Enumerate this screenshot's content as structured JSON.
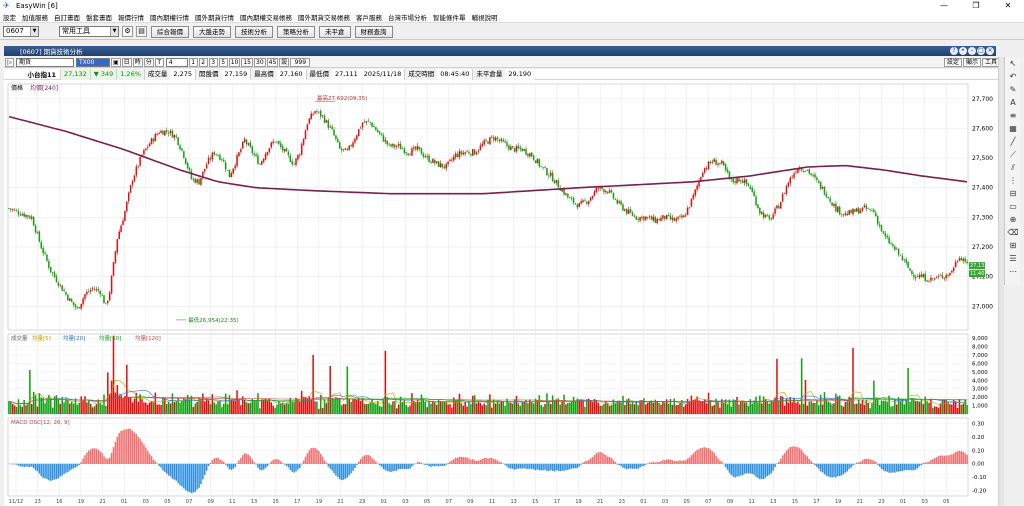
{
  "app": {
    "title": "EasyWin  [6]",
    "icon": "easywin-logo-icon",
    "window_controls": [
      "minimize-icon",
      "restore-icon",
      "close-icon"
    ]
  },
  "menu": [
    "設定",
    "加值服務",
    "自訂畫面",
    "盤套畫面",
    "報價行情",
    "國內期權行情",
    "國外期貨行情",
    "國內期權交易帳務",
    "國外期貨交易帳務",
    "客戶服務",
    "台灣市場分析",
    "智能條件單",
    "輔視說明"
  ],
  "toolbar": {
    "code": "0607",
    "tool_combo": "常用工具",
    "buttons": [
      "綜合報價",
      "大盤走勢",
      "技術分析",
      "策略分析",
      "未平倉",
      "財務查詢"
    ]
  },
  "window": {
    "title": "[0607] 期貨技術分析",
    "controls": [
      "help-icon",
      "pin-icon",
      "minimize-icon",
      "maximize-icon",
      "close-icon"
    ]
  },
  "chartbar": {
    "market": "期貨",
    "symbol": "TX00",
    "period_day": "日",
    "period_time": "時",
    "period_min": "分",
    "tick": "T",
    "interval": "4",
    "intervals": [
      "1",
      "2",
      "3",
      "5",
      "10",
      "15",
      "30",
      "45"
    ],
    "custom_label": "設",
    "custom_value": "999",
    "right_buttons": [
      "設定",
      "顯示",
      "工具"
    ]
  },
  "quote": {
    "name": "小台指11",
    "last": "27,132",
    "change": "▼ 349",
    "change_pct": "1.26%",
    "fields": [
      {
        "label": "成交量",
        "value": "2,275"
      },
      {
        "label": "開盤價",
        "value": "27,159"
      },
      {
        "label": "最高價",
        "value": "27,160"
      },
      {
        "label": "最低價",
        "value": "27,111"
      },
      {
        "label": "",
        "value": "2025/11/18"
      },
      {
        "label": "成交時間",
        "value": "08:45:40"
      },
      {
        "label": "未平倉量",
        "value": "29,190"
      }
    ]
  },
  "price_panel": {
    "legend_price": "價格",
    "legend_ma": "均價[240]",
    "high_label": "最高27,692(09:35)",
    "low_label": "最低26,954(22:35)",
    "last_tag": "27,132",
    "prev_tag": "11:40",
    "yticks": [
      27700,
      27600,
      27500,
      27400,
      27300,
      27200,
      27100,
      27000
    ],
    "ymin": 26920,
    "ymax": 27750
  },
  "volume_panel": {
    "legend": [
      "成交量",
      "均量[5]",
      "均量[20]",
      "均量[60]",
      "均量[120]"
    ],
    "yticks": [
      9000,
      8000,
      7000,
      6000,
      5000,
      4000,
      3000,
      2000,
      1000
    ],
    "ymax": 9500
  },
  "macd_panel": {
    "legend": "MACD OSC[12, 26, 9]",
    "yticks": [
      "0.30",
      "0.20",
      "0.10",
      "0.00",
      "-0.10",
      "-0.20"
    ],
    "ymin": -0.24,
    "ymax": 0.34
  },
  "xaxis": {
    "labels": [
      "11/12",
      "13",
      "16",
      "19",
      "21",
      "01",
      "03",
      "05",
      "07",
      "09",
      "11",
      "13",
      "15",
      "17",
      "19",
      "21",
      "23",
      "01",
      "03",
      "05",
      "07",
      "09",
      "11",
      "13",
      "15",
      "17",
      "19",
      "21",
      "23",
      "01",
      "03",
      "05",
      "07",
      "09",
      "11",
      "13",
      "15",
      "17",
      "19",
      "21",
      "23",
      "01",
      "03",
      "05"
    ]
  },
  "chart_data": {
    "type": "line",
    "title": "",
    "price_anchors": [
      [
        0,
        27330
      ],
      [
        4,
        27320
      ],
      [
        8,
        27310
      ],
      [
        12,
        27300
      ],
      [
        17,
        27200
      ],
      [
        22,
        27120
      ],
      [
        27,
        27070
      ],
      [
        32,
        27020
      ],
      [
        36,
        26990
      ],
      [
        40,
        27040
      ],
      [
        44,
        27060
      ],
      [
        48,
        27050
      ],
      [
        51,
        27000
      ],
      [
        53,
        27050
      ],
      [
        57,
        27230
      ],
      [
        61,
        27320
      ],
      [
        65,
        27430
      ],
      [
        70,
        27510
      ],
      [
        74,
        27550
      ],
      [
        79,
        27590
      ],
      [
        84,
        27590
      ],
      [
        88,
        27570
      ],
      [
        92,
        27510
      ],
      [
        96,
        27430
      ],
      [
        100,
        27420
      ],
      [
        104,
        27480
      ],
      [
        108,
        27520
      ],
      [
        112,
        27500
      ],
      [
        116,
        27440
      ],
      [
        120,
        27500
      ],
      [
        124,
        27560
      ],
      [
        128,
        27520
      ],
      [
        132,
        27480
      ],
      [
        136,
        27530
      ],
      [
        140,
        27560
      ],
      [
        145,
        27520
      ],
      [
        150,
        27480
      ],
      [
        153,
        27520
      ],
      [
        157,
        27620
      ],
      [
        161,
        27660
      ],
      [
        165,
        27640
      ],
      [
        170,
        27590
      ],
      [
        174,
        27530
      ],
      [
        178,
        27520
      ],
      [
        182,
        27570
      ],
      [
        186,
        27620
      ],
      [
        190,
        27620
      ],
      [
        195,
        27580
      ],
      [
        200,
        27540
      ],
      [
        205,
        27540
      ],
      [
        210,
        27520
      ],
      [
        215,
        27530
      ],
      [
        220,
        27500
      ],
      [
        225,
        27480
      ],
      [
        230,
        27470
      ],
      [
        235,
        27510
      ],
      [
        240,
        27520
      ],
      [
        245,
        27520
      ],
      [
        250,
        27550
      ],
      [
        255,
        27570
      ],
      [
        260,
        27550
      ],
      [
        265,
        27530
      ],
      [
        270,
        27530
      ],
      [
        275,
        27510
      ],
      [
        280,
        27470
      ],
      [
        285,
        27440
      ],
      [
        290,
        27400
      ],
      [
        295,
        27360
      ],
      [
        300,
        27340
      ],
      [
        305,
        27360
      ],
      [
        310,
        27400
      ],
      [
        315,
        27390
      ],
      [
        320,
        27350
      ],
      [
        325,
        27320
      ],
      [
        330,
        27300
      ],
      [
        335,
        27300
      ],
      [
        340,
        27290
      ],
      [
        345,
        27300
      ],
      [
        350,
        27290
      ],
      [
        355,
        27300
      ],
      [
        360,
        27370
      ],
      [
        365,
        27460
      ],
      [
        370,
        27490
      ],
      [
        375,
        27480
      ],
      [
        380,
        27420
      ],
      [
        385,
        27430
      ],
      [
        390,
        27400
      ],
      [
        395,
        27320
      ],
      [
        400,
        27290
      ],
      [
        405,
        27340
      ],
      [
        410,
        27420
      ],
      [
        415,
        27470
      ],
      [
        420,
        27460
      ],
      [
        425,
        27420
      ],
      [
        430,
        27380
      ],
      [
        435,
        27330
      ],
      [
        440,
        27310
      ],
      [
        445,
        27320
      ],
      [
        450,
        27330
      ],
      [
        455,
        27320
      ],
      [
        460,
        27240
      ],
      [
        465,
        27200
      ],
      [
        470,
        27160
      ],
      [
        475,
        27110
      ],
      [
        480,
        27100
      ],
      [
        485,
        27090
      ],
      [
        490,
        27100
      ],
      [
        495,
        27110
      ],
      [
        500,
        27170
      ],
      [
        504,
        27150
      ]
    ],
    "ma_anchors": [
      [
        0,
        27640
      ],
      [
        30,
        27590
      ],
      [
        60,
        27530
      ],
      [
        90,
        27460
      ],
      [
        110,
        27420
      ],
      [
        130,
        27400
      ],
      [
        160,
        27390
      ],
      [
        200,
        27380
      ],
      [
        250,
        27380
      ],
      [
        300,
        27400
      ],
      [
        330,
        27410
      ],
      [
        360,
        27420
      ],
      [
        390,
        27440
      ],
      [
        410,
        27460
      ],
      [
        420,
        27470
      ],
      [
        440,
        27475
      ],
      [
        460,
        27460
      ],
      [
        480,
        27440
      ],
      [
        504,
        27420
      ]
    ],
    "high": {
      "value": 27692,
      "time": "09:35"
    },
    "low": {
      "value": 26954,
      "time": "22:35"
    },
    "ylim": [
      26920,
      27750
    ]
  }
}
